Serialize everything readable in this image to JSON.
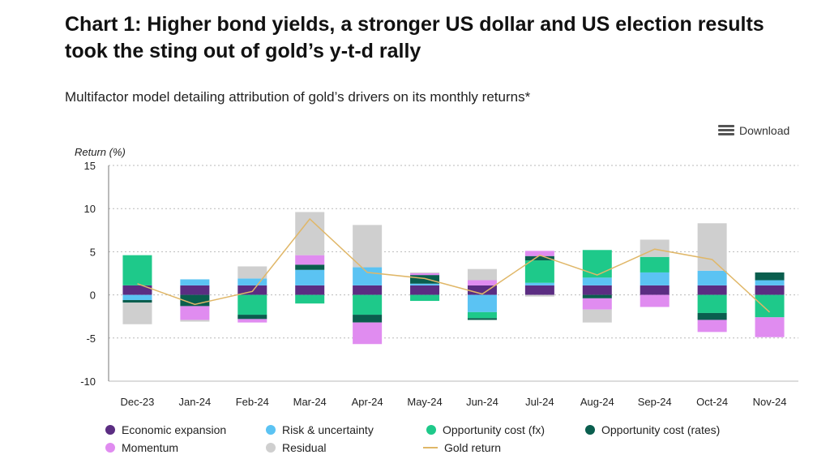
{
  "title": "Chart 1: Higher bond yields, a stronger US dollar and US election results took the sting out of gold’s y-t-d rally",
  "subtitle": "Multifactor model detailing attribution of gold’s drivers on its monthly returns*",
  "download_label": "Download",
  "colors": {
    "economic": "#5b2d82",
    "risk": "#5bc3f3",
    "fx": "#1ec98a",
    "rates": "#0a5e4e",
    "momentum": "#e08cf0",
    "residual": "#cfcfcf",
    "gold": "#e0b768"
  },
  "chart_data": {
    "type": "bar",
    "stacked": true,
    "ylabel": "Return (%)",
    "ylim": [
      -10,
      15
    ],
    "yticks": [
      15,
      10,
      5,
      0,
      -5,
      -10
    ],
    "grid": true,
    "legend_position": "bottom",
    "categories": [
      "Dec-23",
      "Jan-24",
      "Feb-24",
      "Mar-24",
      "Apr-24",
      "May-24",
      "Jun-24",
      "Jul-24",
      "Aug-24",
      "Sep-24",
      "Oct-24",
      "Nov-24"
    ],
    "series": [
      {
        "name": "Economic expansion",
        "key": "economic",
        "values": [
          1.1,
          1.1,
          1.1,
          1.1,
          1.1,
          1.1,
          1.1,
          1.1,
          1.1,
          1.1,
          1.1,
          1.1
        ]
      },
      {
        "name": "Risk & uncertainty",
        "key": "risk",
        "values": [
          -0.6,
          0.7,
          0.8,
          1.8,
          2.1,
          0.2,
          -2.0,
          0.3,
          0.9,
          1.5,
          1.7,
          0.6
        ]
      },
      {
        "name": "Opportunity cost (fx)",
        "key": "fx",
        "values": [
          3.5,
          0.0,
          -2.3,
          -1.0,
          -2.3,
          -0.7,
          -0.7,
          2.6,
          3.2,
          1.8,
          -2.1,
          -2.6
        ]
      },
      {
        "name": "Opportunity cost (rates)",
        "key": "rates",
        "values": [
          -0.3,
          -1.3,
          -0.5,
          0.6,
          -0.9,
          1.0,
          -0.2,
          0.5,
          -0.4,
          0.0,
          -0.8,
          0.9
        ]
      },
      {
        "name": "Momentum",
        "key": "momentum",
        "values": [
          0.0,
          -1.6,
          -0.4,
          1.1,
          -2.5,
          0.2,
          0.6,
          0.6,
          -1.3,
          -1.4,
          -1.4,
          -2.3
        ]
      },
      {
        "name": "Residual",
        "key": "residual",
        "values": [
          -2.5,
          -0.2,
          1.4,
          5.0,
          4.9,
          0.1,
          1.3,
          -0.2,
          -1.5,
          2.0,
          5.5,
          0.0
        ]
      }
    ],
    "line": {
      "name": "Gold return",
      "key": "gold",
      "values": [
        1.3,
        -1.1,
        0.4,
        8.8,
        2.6,
        1.9,
        0.1,
        4.6,
        2.3,
        5.3,
        4.1,
        -2.0
      ]
    }
  }
}
